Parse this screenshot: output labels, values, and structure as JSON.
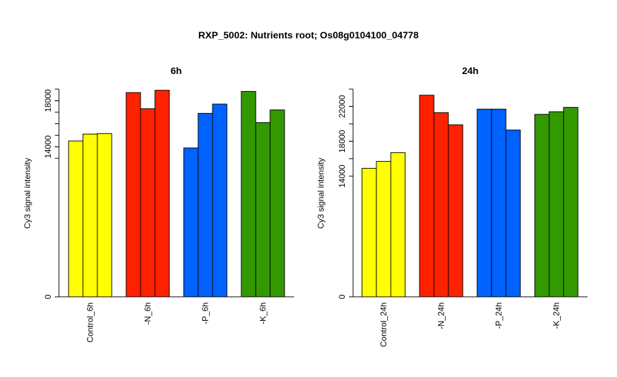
{
  "title": "RXP_5002: Nutrients root; Os08g0104100_04778",
  "colors": {
    "control": "#ffff00",
    "N": "#ff2200",
    "P": "#0062ff",
    "K": "#339900"
  },
  "chart_data": [
    {
      "type": "bar",
      "title": "6h",
      "ylabel": "Cy3 signal intensity",
      "xlabel": "",
      "axis_break": true,
      "ylim": [
        0,
        19100
      ],
      "y_ticks": [
        0,
        14000,
        18000
      ],
      "y_minor_ticks": [
        13000,
        14000,
        15000,
        16000,
        17000,
        18000,
        19000
      ],
      "categories": [
        "Control_6h",
        "-N_6h",
        "-P_6h",
        "-K_6h"
      ],
      "group_colors": [
        "control",
        "N",
        "P",
        "K"
      ],
      "values": [
        [
          14500,
          15100,
          15150
        ],
        [
          18700,
          17300,
          18900
        ],
        [
          13900,
          16900,
          17700
        ],
        [
          18800,
          16100,
          17200
        ]
      ]
    },
    {
      "type": "bar",
      "title": "24h",
      "ylabel": "Cy3 signal intensity",
      "xlabel": "",
      "axis_break": true,
      "ylim": [
        0,
        24000
      ],
      "y_ticks": [
        0,
        14000,
        18000,
        22000
      ],
      "y_minor_ticks": [
        14000,
        16000,
        18000,
        20000,
        22000,
        24000
      ],
      "categories": [
        "Control_24h",
        "-N_24h",
        "-P_24h",
        "-K_24h"
      ],
      "group_colors": [
        "control",
        "N",
        "P",
        "K"
      ],
      "values": [
        [
          14900,
          15700,
          16700
        ],
        [
          23300,
          21300,
          19900
        ],
        [
          21700,
          21700,
          19300
        ],
        [
          21100,
          21400,
          21900
        ]
      ]
    }
  ]
}
